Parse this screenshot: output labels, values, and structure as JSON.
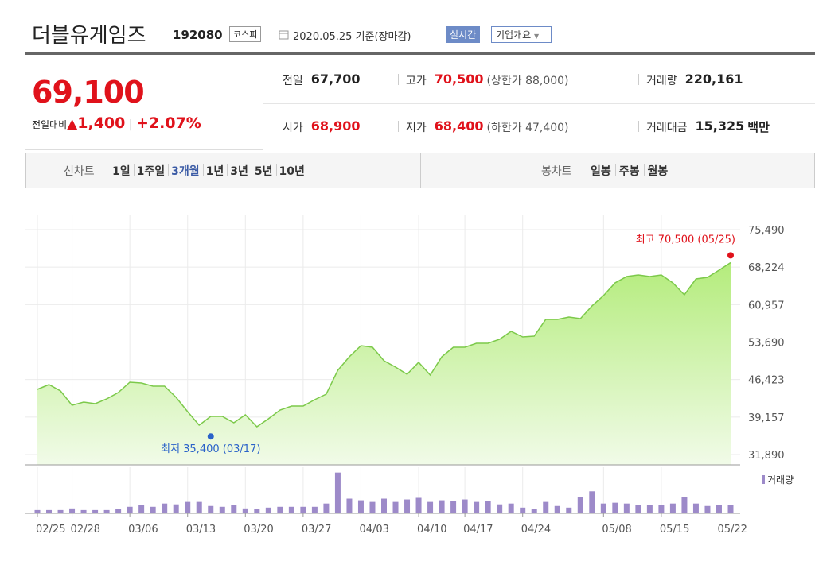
{
  "header": {
    "title": "더블유게임즈",
    "code": "192080",
    "market": "코스피",
    "date": "2020.05.25 기준(장마감)",
    "realtime": "실시간",
    "company": "기업개요"
  },
  "quote": {
    "price": "69,100",
    "change_label": "전일대비",
    "change": "1,400",
    "change_pct": "+2.07%"
  },
  "summary": [
    [
      {
        "label": "전일",
        "value": "67,700"
      },
      {
        "label": "고가",
        "value": "70,500",
        "note": "(상한가 88,000)"
      },
      {
        "label": "거래량",
        "value": "220,161"
      }
    ],
    [
      {
        "label": "시가",
        "value": "68,900"
      },
      {
        "label": "저가",
        "value": "68,400",
        "note": "(하한가 47,400)"
      },
      {
        "label": "거래대금",
        "value": "15,325",
        "unit": "백만"
      }
    ]
  ],
  "tabs": {
    "line_label": "선차트",
    "line": [
      "1일",
      "1주일",
      "3개월",
      "1년",
      "3년",
      "5년",
      "10년"
    ],
    "selected": 2,
    "candle_label": "봉차트",
    "candle": [
      "일봉",
      "주봉",
      "월봉"
    ]
  },
  "chart_data": [
    {
      "type": "area",
      "color": "#7cc94a",
      "x": [
        "02/25",
        "02/26",
        "02/27",
        "02/28",
        "03/02",
        "03/03",
        "03/04",
        "03/05",
        "03/06",
        "03/09",
        "03/10",
        "03/11",
        "03/12",
        "03/13",
        "03/16",
        "03/17",
        "03/18",
        "03/19",
        "03/20",
        "03/23",
        "03/24",
        "03/25",
        "03/26",
        "03/27",
        "03/30",
        "03/31",
        "04/01",
        "04/02",
        "04/03",
        "04/06",
        "04/07",
        "04/08",
        "04/09",
        "04/10",
        "04/13",
        "04/14",
        "04/16",
        "04/17",
        "04/20",
        "04/21",
        "04/22",
        "04/23",
        "04/24",
        "04/27",
        "04/28",
        "04/29",
        "05/04",
        "05/06",
        "05/07",
        "05/08",
        "05/11",
        "05/12",
        "05/13",
        "05/14",
        "05/15",
        "05/18",
        "05/19",
        "05/20",
        "05/21",
        "05/22",
        "05/25"
      ],
      "values": [
        44520,
        45440,
        44220,
        41440,
        42060,
        41750,
        42680,
        43900,
        45910,
        45760,
        45140,
        45140,
        42980,
        40210,
        37590,
        39290,
        39290,
        38050,
        39590,
        37280,
        38820,
        40520,
        41290,
        41290,
        42520,
        43600,
        48220,
        50840,
        52990,
        52690,
        50070,
        48840,
        47450,
        49760,
        47300,
        50840,
        52690,
        52690,
        53460,
        53460,
        54230,
        55770,
        54690,
        54850,
        58080,
        58080,
        58550,
        58240,
        60700,
        62700,
        65170,
        66400,
        66710,
        66400,
        66710,
        65170,
        62860,
        65940,
        66250,
        67630,
        69100
      ],
      "ylim": [
        31890,
        75490
      ],
      "yticks": [
        {
          "value": 75490,
          "label": "75,490"
        },
        {
          "value": 68224,
          "label": "68,224"
        },
        {
          "value": 60957,
          "label": "60,957"
        },
        {
          "value": 53690,
          "label": "53,690"
        },
        {
          "value": 46423,
          "label": "46,423"
        },
        {
          "value": 39157,
          "label": "39,157"
        },
        {
          "value": 31890,
          "label": "31,890"
        }
      ],
      "grid": true,
      "annotations": [
        {
          "text": "최고 70,500 (05/25)",
          "value": 70500,
          "x": "05/25",
          "color": "#e0121b"
        },
        {
          "text": "최저 35,400 (03/17)",
          "value": 35400,
          "x": "03/17",
          "color": "#2a62c9"
        }
      ]
    },
    {
      "type": "bar",
      "name": "거래량",
      "color": "#9d8ac9",
      "values": [
        88000,
        88000,
        88000,
        132000,
        88000,
        88000,
        88000,
        110000,
        176000,
        220000,
        176000,
        264000,
        242000,
        308000,
        308000,
        198000,
        176000,
        220000,
        132000,
        110000,
        154000,
        176000,
        176000,
        176000,
        176000,
        264000,
        1100000,
        396000,
        352000,
        308000,
        396000,
        308000,
        374000,
        418000,
        308000,
        352000,
        330000,
        374000,
        308000,
        330000,
        242000,
        264000,
        154000,
        110000,
        308000,
        198000,
        154000,
        440000,
        594000,
        264000,
        286000,
        264000,
        220000,
        220000,
        220000,
        264000,
        440000,
        264000,
        198000,
        220000,
        220161
      ],
      "ylim": [
        0,
        1200000
      ],
      "xticks": [
        "02/25",
        "02/28",
        "03/06",
        "03/13",
        "03/20",
        "03/27",
        "04/03",
        "04/10",
        "04/17",
        "04/24",
        "05/08",
        "05/15",
        "05/22"
      ]
    }
  ]
}
